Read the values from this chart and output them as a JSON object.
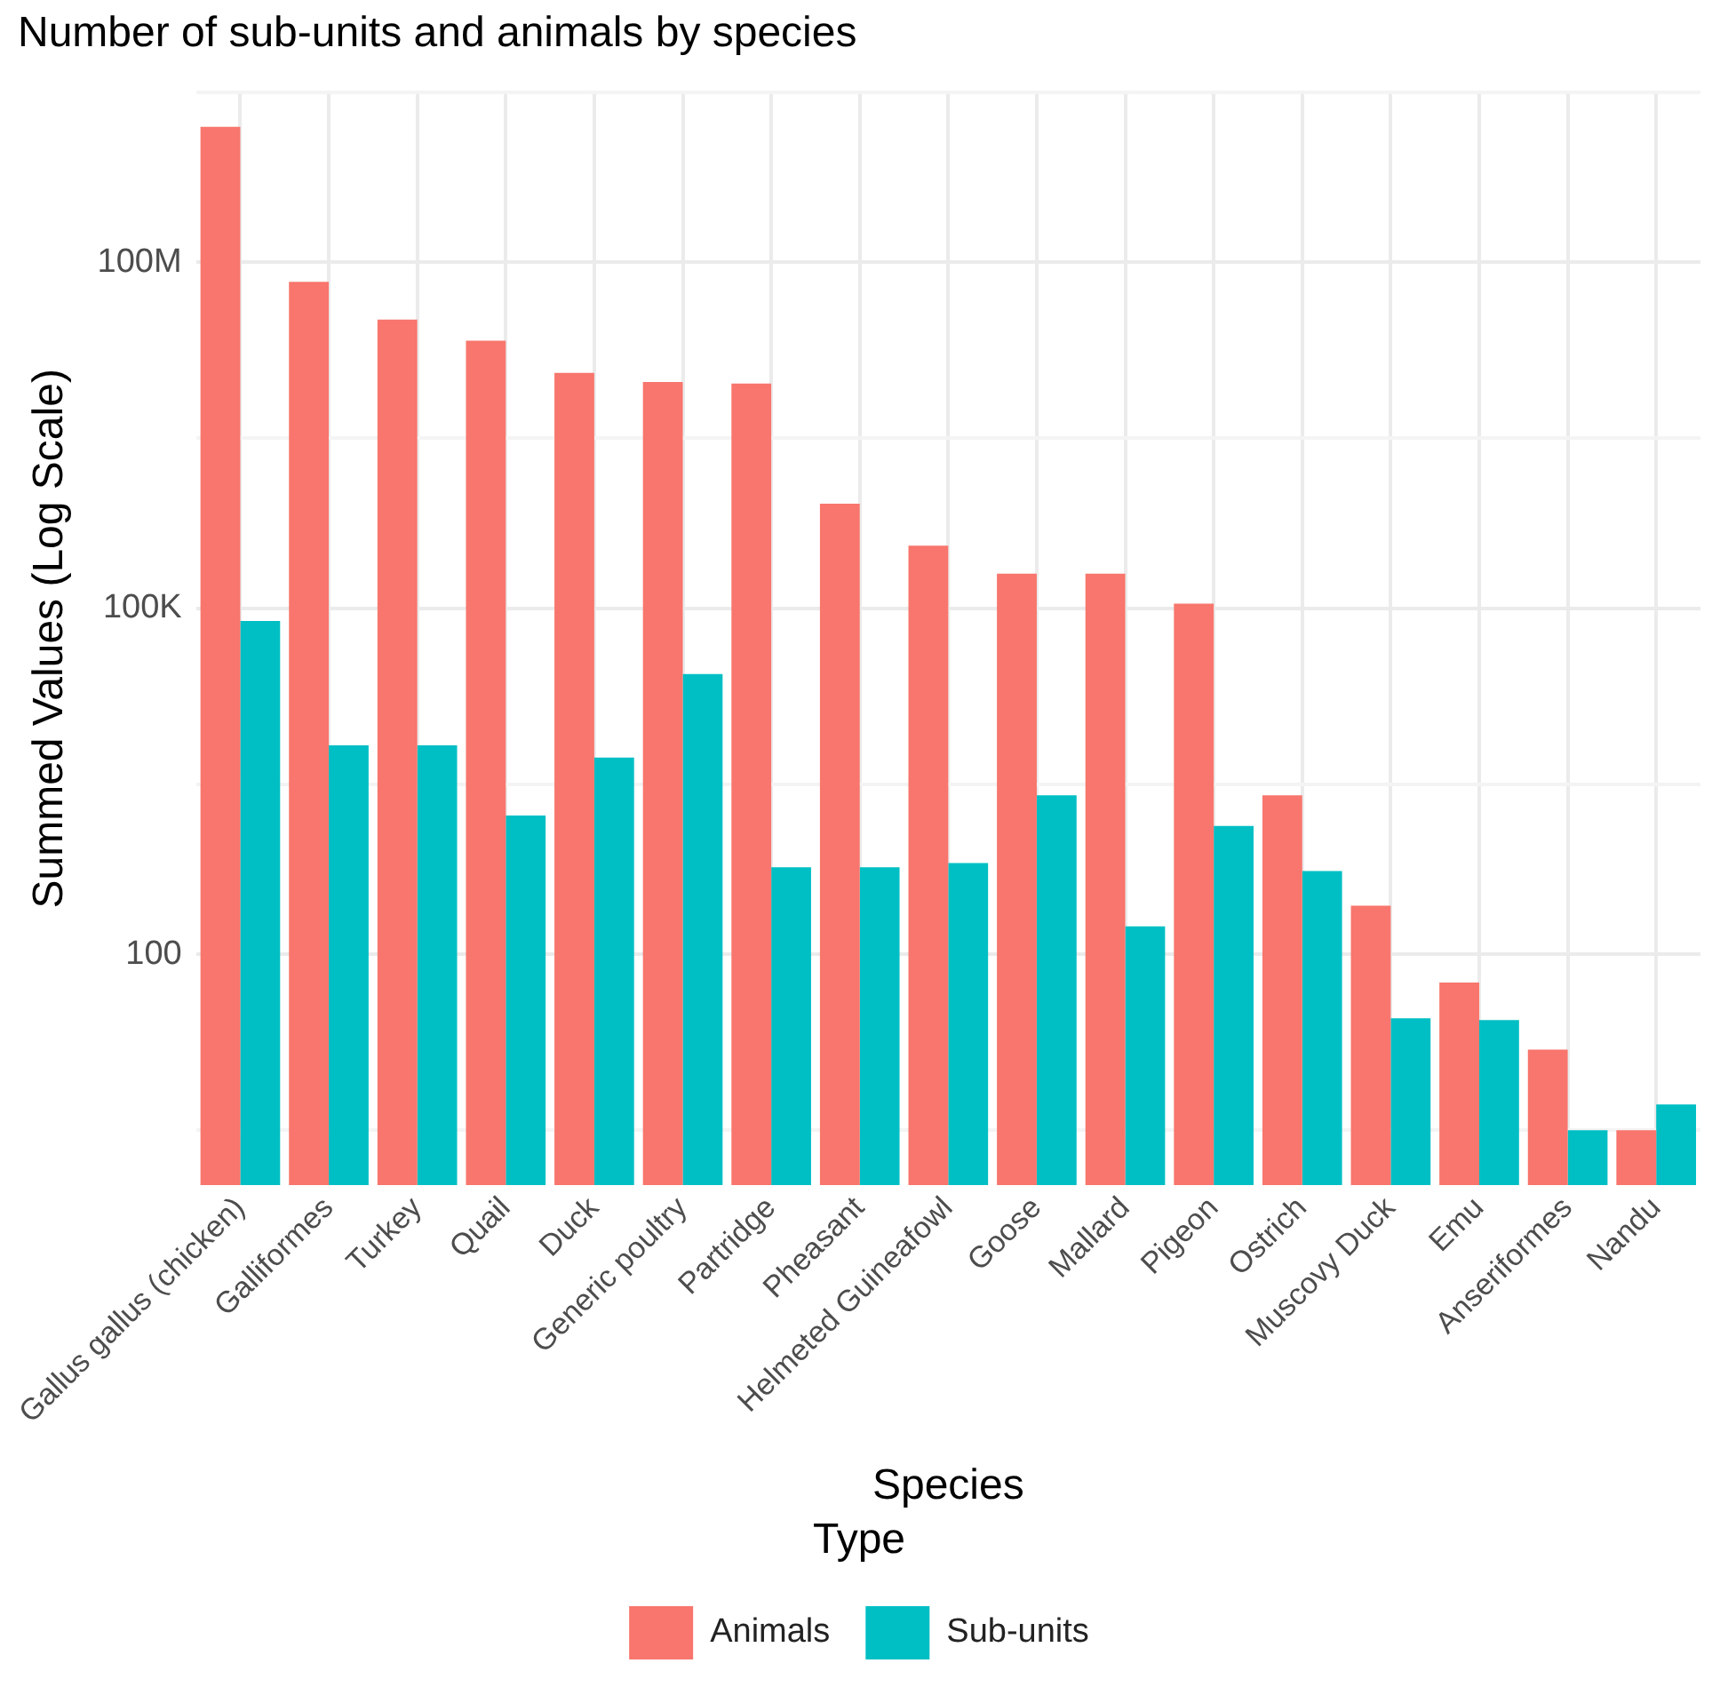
{
  "chart_data": {
    "type": "bar",
    "title": "Number of sub-units and animals by species",
    "xlabel": "Species",
    "ylabel": "Summed Values (Log Scale)",
    "legend_title": "Type",
    "legend": "bottom",
    "grid": true,
    "log": true,
    "categories": [
      "Gallus gallus (chicken)",
      "Galliformes",
      "Turkey",
      "Quail",
      "Duck",
      "Generic poultry",
      "Partridge",
      "Pheasant",
      "Helmeted Guineafowl",
      "Goose",
      "Mallard",
      "Pigeon",
      "Ostrich",
      "Muscovy Duck",
      "Emu",
      "Anseriformes",
      "Nandu"
    ],
    "ylim": [
      1,
      3000000000
    ],
    "yticks": [
      {
        "value": 3,
        "label": null
      },
      {
        "value": 100,
        "label": "100"
      },
      {
        "value": 3000,
        "label": null
      },
      {
        "value": 100000,
        "label": "100K"
      },
      {
        "value": 3000000,
        "label": null
      },
      {
        "value": 100000000,
        "label": "100M"
      },
      {
        "value": 3000000000,
        "label": null
      }
    ],
    "series": [
      {
        "name": "Animals",
        "color": "#f8766d",
        "values": [
          1500000000,
          68000000,
          32000000,
          21000000,
          11000000,
          9200000,
          8900000,
          810000,
          350000,
          200000,
          200000,
          110000,
          2400,
          265,
          57,
          15,
          3
        ]
      },
      {
        "name": "Sub-units",
        "color": "#00bfc4",
        "values": [
          78000,
          6500,
          6500,
          1600,
          5100,
          27000,
          570,
          570,
          620,
          2400,
          175,
          1300,
          530,
          28,
          27,
          3,
          5
        ]
      }
    ]
  }
}
